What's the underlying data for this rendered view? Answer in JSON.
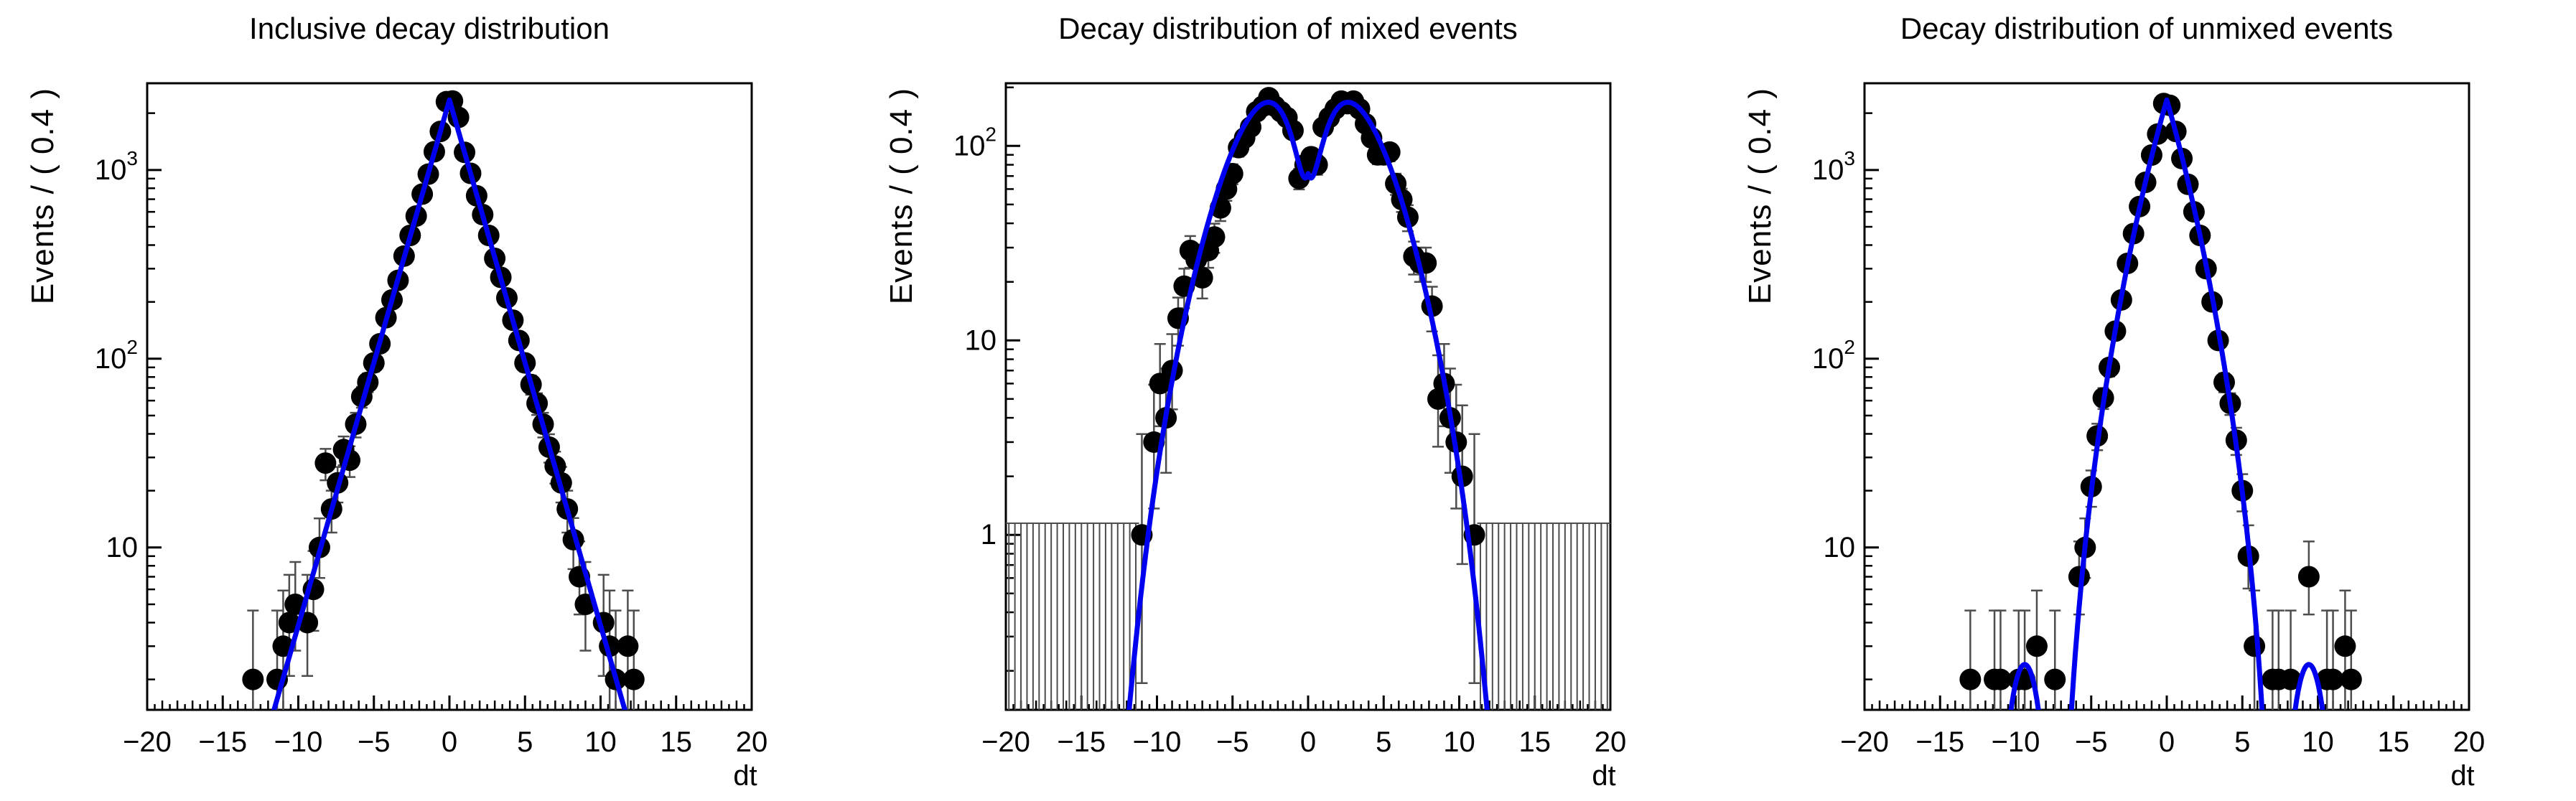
{
  "page": {
    "background": "#ffffff"
  },
  "colors": {
    "curve": "#0000f0",
    "marker": "#000000",
    "axis": "#000000",
    "error_bar": "#4d4d4d"
  },
  "chart_data": [
    {
      "type": "scatter",
      "title": "Inclusive decay distribution",
      "xlabel": "dt",
      "ylabel": "Events / ( 0.4 )",
      "y_scale": "log",
      "grid": false,
      "legend": null,
      "x_range": [
        -20,
        20
      ],
      "y_range": [
        1.38,
        2880
      ],
      "bin_width": 0.4,
      "x_ticks": [
        -20,
        -15,
        -10,
        -5,
        0,
        5,
        10,
        15,
        20
      ],
      "x_tick_labels": [
        "−20",
        "−15",
        "−10",
        "−5",
        "0",
        "5",
        "10",
        "15",
        "20"
      ],
      "y_tick_labels": [
        {
          "v": 10,
          "base": "10",
          "sup": ""
        },
        {
          "v": 100,
          "base": "10",
          "sup": "2"
        },
        {
          "v": 1000,
          "base": "10",
          "sup": "3"
        }
      ],
      "points": [
        [
          -13.0,
          2
        ],
        [
          -11.4,
          2
        ],
        [
          -11.0,
          3
        ],
        [
          -10.6,
          4
        ],
        [
          -10.2,
          5
        ],
        [
          -9.4,
          4
        ],
        [
          -9.0,
          6
        ],
        [
          -8.6,
          10
        ],
        [
          -8.2,
          28
        ],
        [
          -7.8,
          16
        ],
        [
          -7.4,
          22
        ],
        [
          -7.0,
          33
        ],
        [
          -6.6,
          29
        ],
        [
          -6.2,
          45
        ],
        [
          -5.8,
          63
        ],
        [
          -5.4,
          75
        ],
        [
          -5.0,
          95
        ],
        [
          -4.6,
          120
        ],
        [
          -4.2,
          165
        ],
        [
          -3.8,
          205
        ],
        [
          -3.4,
          260
        ],
        [
          -3.0,
          350
        ],
        [
          -2.6,
          450
        ],
        [
          -2.2,
          570
        ],
        [
          -1.8,
          745
        ],
        [
          -1.4,
          950
        ],
        [
          -1.0,
          1250
        ],
        [
          -0.6,
          1600
        ],
        [
          -0.2,
          2300
        ],
        [
          0.2,
          2320
        ],
        [
          0.6,
          1900
        ],
        [
          1.0,
          1240
        ],
        [
          1.4,
          960
        ],
        [
          1.8,
          730
        ],
        [
          2.2,
          580
        ],
        [
          2.6,
          450
        ],
        [
          3.0,
          340
        ],
        [
          3.4,
          270
        ],
        [
          3.8,
          210
        ],
        [
          4.2,
          160
        ],
        [
          4.6,
          125
        ],
        [
          5.0,
          95
        ],
        [
          5.4,
          73
        ],
        [
          5.8,
          58
        ],
        [
          6.2,
          45
        ],
        [
          6.6,
          34
        ],
        [
          7.0,
          27
        ],
        [
          7.4,
          22
        ],
        [
          7.8,
          16
        ],
        [
          8.2,
          11
        ],
        [
          8.6,
          7
        ],
        [
          9.0,
          5
        ],
        [
          10.2,
          4
        ],
        [
          10.6,
          3
        ],
        [
          11.0,
          2
        ],
        [
          11.8,
          3
        ],
        [
          12.2,
          2
        ]
      ],
      "curve": {
        "type": "exp",
        "A": 2350,
        "tau": 1.56
      },
      "comb": null
    },
    {
      "type": "scatter",
      "title": "Decay distribution of mixed events",
      "xlabel": "dt",
      "ylabel": "Events / ( 0.4 )",
      "y_scale": "log",
      "grid": false,
      "legend": null,
      "x_range": [
        -20,
        20
      ],
      "y_range": [
        0.126,
        210
      ],
      "bin_width": 0.4,
      "x_ticks": [
        -20,
        -15,
        -10,
        -5,
        0,
        5,
        10,
        15,
        20
      ],
      "x_tick_labels": [
        "−20",
        "−15",
        "−10",
        "−5",
        "0",
        "5",
        "10",
        "15",
        "20"
      ],
      "y_tick_labels": [
        {
          "v": 1,
          "base": "1",
          "sup": ""
        },
        {
          "v": 10,
          "base": "10",
          "sup": ""
        },
        {
          "v": 100,
          "base": "10",
          "sup": "2"
        }
      ],
      "points": [
        [
          -11.0,
          1
        ],
        [
          -10.2,
          3
        ],
        [
          -9.8,
          6
        ],
        [
          -9.4,
          4
        ],
        [
          -9.0,
          7
        ],
        [
          -8.6,
          13
        ],
        [
          -8.2,
          19
        ],
        [
          -7.8,
          29
        ],
        [
          -7.4,
          26
        ],
        [
          -7.0,
          21
        ],
        [
          -6.6,
          29
        ],
        [
          -6.2,
          34
        ],
        [
          -5.8,
          48
        ],
        [
          -5.4,
          60
        ],
        [
          -5.0,
          72
        ],
        [
          -4.6,
          98
        ],
        [
          -4.2,
          110
        ],
        [
          -3.8,
          125
        ],
        [
          -3.4,
          150
        ],
        [
          -3.0,
          160
        ],
        [
          -2.6,
          177
        ],
        [
          -2.2,
          160
        ],
        [
          -1.8,
          150
        ],
        [
          -1.4,
          140
        ],
        [
          -1.0,
          120
        ],
        [
          -0.6,
          68
        ],
        [
          -0.2,
          80
        ],
        [
          0.2,
          88
        ],
        [
          0.6,
          80
        ],
        [
          1.0,
          125
        ],
        [
          1.4,
          140
        ],
        [
          1.8,
          155
        ],
        [
          2.2,
          170
        ],
        [
          2.6,
          165
        ],
        [
          3.0,
          170
        ],
        [
          3.4,
          155
        ],
        [
          3.8,
          130
        ],
        [
          4.2,
          110
        ],
        [
          4.6,
          90
        ],
        [
          5.0,
          90
        ],
        [
          5.4,
          93
        ],
        [
          5.8,
          64
        ],
        [
          6.2,
          53
        ],
        [
          6.6,
          43
        ],
        [
          7.0,
          27
        ],
        [
          7.4,
          25
        ],
        [
          7.8,
          25
        ],
        [
          8.2,
          15
        ],
        [
          8.6,
          5
        ],
        [
          9.0,
          6
        ],
        [
          9.4,
          4
        ],
        [
          9.8,
          3
        ],
        [
          10.2,
          2
        ],
        [
          11.0,
          1
        ]
      ],
      "curve": {
        "type": "mix",
        "A": 1030,
        "tau": 1.7,
        "D": 0.93,
        "dm": 0.5
      },
      "comb": {
        "top": 1.148,
        "step": 0.4,
        "ranges": [
          [
            -19.8,
            -11.4
          ],
          [
            11.4,
            19.8
          ]
        ]
      }
    },
    {
      "type": "scatter",
      "title": "Decay distribution of unmixed events",
      "xlabel": "dt",
      "ylabel": "Events / ( 0.4 )",
      "y_scale": "log",
      "grid": false,
      "legend": null,
      "x_range": [
        -20,
        20
      ],
      "y_range": [
        1.38,
        2880
      ],
      "bin_width": 0.4,
      "x_ticks": [
        -20,
        -15,
        -10,
        -5,
        0,
        5,
        10,
        15,
        20
      ],
      "x_tick_labels": [
        "−20",
        "−15",
        "−10",
        "−5",
        "0",
        "5",
        "10",
        "15",
        "20"
      ],
      "y_tick_labels": [
        {
          "v": 10,
          "base": "10",
          "sup": ""
        },
        {
          "v": 100,
          "base": "10",
          "sup": "2"
        },
        {
          "v": 1000,
          "base": "10",
          "sup": "3"
        }
      ],
      "points": [
        [
          -13.0,
          2
        ],
        [
          -11.4,
          2
        ],
        [
          -11.0,
          2
        ],
        [
          -9.8,
          2
        ],
        [
          -9.4,
          2
        ],
        [
          -8.6,
          3
        ],
        [
          -7.4,
          2
        ],
        [
          -5.8,
          7
        ],
        [
          -5.4,
          10
        ],
        [
          -5.0,
          21
        ],
        [
          -4.6,
          39
        ],
        [
          -4.2,
          62
        ],
        [
          -3.8,
          90
        ],
        [
          -3.4,
          140
        ],
        [
          -3.0,
          205
        ],
        [
          -2.6,
          320
        ],
        [
          -2.2,
          460
        ],
        [
          -1.8,
          640
        ],
        [
          -1.4,
          860
        ],
        [
          -1.0,
          1200
        ],
        [
          -0.6,
          1550
        ],
        [
          -0.2,
          2250
        ],
        [
          0.2,
          2200
        ],
        [
          0.6,
          1600
        ],
        [
          1.0,
          1150
        ],
        [
          1.4,
          840
        ],
        [
          1.8,
          600
        ],
        [
          2.2,
          450
        ],
        [
          2.6,
          300
        ],
        [
          3.0,
          200
        ],
        [
          3.4,
          125
        ],
        [
          3.8,
          75
        ],
        [
          4.2,
          58
        ],
        [
          4.6,
          37
        ],
        [
          5.0,
          20
        ],
        [
          5.4,
          9
        ],
        [
          5.8,
          3
        ],
        [
          7.0,
          2
        ],
        [
          7.4,
          2
        ],
        [
          8.2,
          2
        ],
        [
          9.4,
          7
        ],
        [
          10.6,
          2
        ],
        [
          11.0,
          2
        ],
        [
          11.8,
          3
        ],
        [
          12.2,
          2
        ]
      ],
      "curve": {
        "type": "unmix",
        "A": 2350,
        "tau": 1.56,
        "dm": 0.44,
        "cut": 6.6,
        "bump_A": 2.4,
        "bump_from": 7.4,
        "bump_to": 11.4
      },
      "comb": null
    }
  ]
}
